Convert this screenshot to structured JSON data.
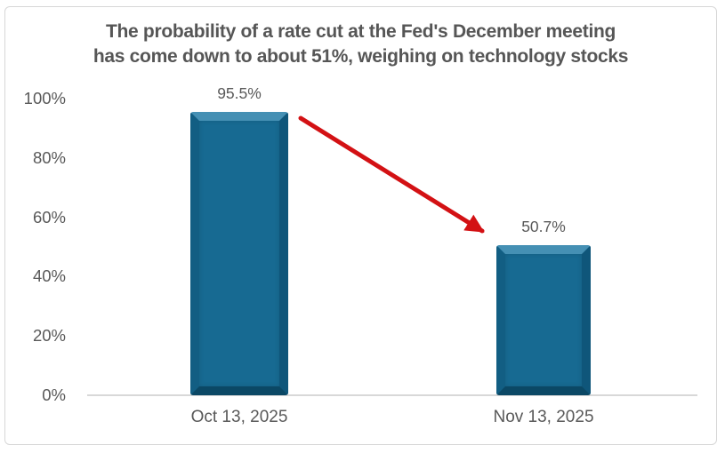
{
  "title": {
    "line1": "The probability of a rate cut at the Fed's December meeting",
    "line2": "has come down to about 51%, weighing on technology stocks"
  },
  "chart_data": {
    "type": "bar",
    "title": "The probability of a rate cut at the Fed's December meeting has come down to about 51%, weighing on technology stocks",
    "categories": [
      "Oct 13, 2025",
      "Nov 13, 2025"
    ],
    "values": [
      95.5,
      50.7
    ],
    "labels": [
      "95.5%",
      "50.7%"
    ],
    "xlabel": "",
    "ylabel": "",
    "ylim": [
      0,
      100
    ],
    "yticks": [
      {
        "value": 0,
        "label": "0%"
      },
      {
        "value": 20,
        "label": "20%"
      },
      {
        "value": 40,
        "label": "40%"
      },
      {
        "value": 60,
        "label": "60%"
      },
      {
        "value": 80,
        "label": "80%"
      },
      {
        "value": 100,
        "label": "100%"
      }
    ],
    "grid": false,
    "legend": false,
    "annotation": {
      "type": "arrow",
      "from": "top of Oct 13, 2025 bar",
      "to": "top of Nov 13, 2025 bar",
      "meaning": "decline in probability"
    },
    "colors": {
      "bar": "#176a92",
      "arrow": "#d31114",
      "title_text": "#565656",
      "axis_text": "#595959",
      "axis_line": "#d8d8d8",
      "card_border": "#d7d7d7",
      "background": "#ffffff"
    }
  }
}
